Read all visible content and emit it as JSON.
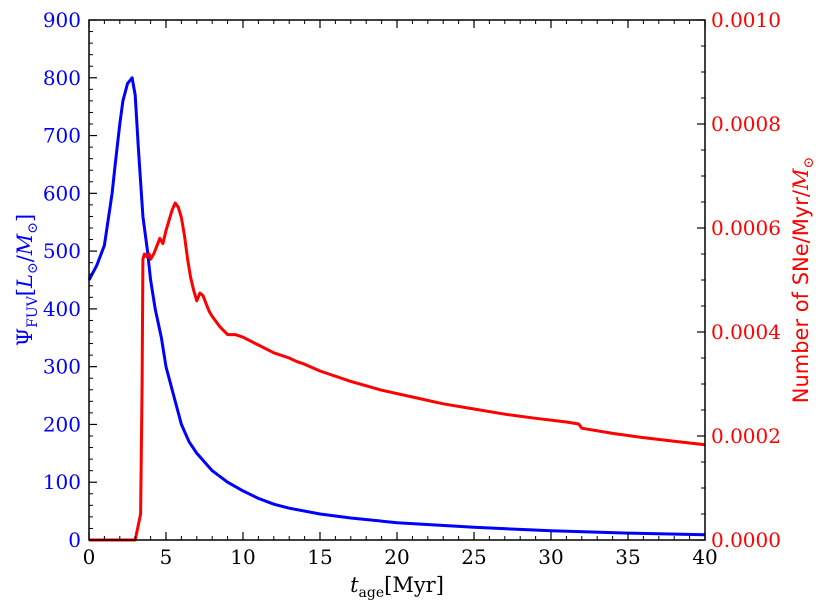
{
  "chart_data": {
    "type": "line",
    "xlabel": "t_age[Myr]",
    "ylabel_left": "Ψ_FUV[L_⊙/M_⊙]",
    "ylabel_right": "Number of SNe/Myr/M_⊙",
    "xlim": [
      0,
      40
    ],
    "ylim_left": [
      0,
      900
    ],
    "ylim_right": [
      0,
      0.001
    ],
    "grid": false,
    "x_ticks": [
      "0",
      "5",
      "10",
      "15",
      "20",
      "25",
      "30",
      "35",
      "40"
    ],
    "y_left_ticks": [
      "0",
      "100",
      "200",
      "300",
      "400",
      "500",
      "600",
      "700",
      "800",
      "900"
    ],
    "y_right_ticks": [
      "0.0000",
      "0.0002",
      "0.0004",
      "0.0006",
      "0.0008",
      "0.0010"
    ],
    "series": [
      {
        "axis": "left",
        "color": "#0000ff",
        "x": [
          0,
          0.5,
          1.0,
          1.5,
          1.7,
          2.0,
          2.2,
          2.5,
          2.8,
          3.0,
          3.2,
          3.5,
          3.8,
          4.0,
          4.3,
          4.7,
          5.0,
          5.5,
          6.0,
          6.5,
          7.0,
          8.0,
          9.0,
          10.0,
          11.0,
          12.0,
          13.0,
          15.0,
          17.0,
          20.0,
          25.0,
          30.0,
          35.0,
          40.0
        ],
        "y": [
          450,
          475,
          510,
          600,
          650,
          720,
          760,
          790,
          800,
          770,
          680,
          560,
          500,
          450,
          400,
          350,
          300,
          250,
          200,
          170,
          150,
          120,
          100,
          85,
          72,
          62,
          55,
          45,
          38,
          30,
          22,
          16,
          12,
          9
        ]
      },
      {
        "axis": "right",
        "color": "#ff0000",
        "x": [
          0,
          3.0,
          3.35,
          3.45,
          3.5,
          3.6,
          3.75,
          3.9,
          4.0,
          4.2,
          4.4,
          4.6,
          4.8,
          5.0,
          5.2,
          5.4,
          5.6,
          5.8,
          6.0,
          6.2,
          6.4,
          6.6,
          6.8,
          7.0,
          7.2,
          7.4,
          7.6,
          7.8,
          8.0,
          8.5,
          9.0,
          9.5,
          10.0,
          11.0,
          12.0,
          13.0,
          13.5,
          14.0,
          15.0,
          17.0,
          19.0,
          21.0,
          23.0,
          25.0,
          27.0,
          29.0,
          31.0,
          31.8,
          32.0,
          34.0,
          36.0,
          38.0,
          40.0
        ],
        "y": [
          0,
          0,
          5e-05,
          0.0003,
          0.00054,
          0.00055,
          0.000545,
          0.00055,
          0.00054,
          0.00055,
          0.000565,
          0.00058,
          0.00057,
          0.000595,
          0.000615,
          0.000635,
          0.000648,
          0.00064,
          0.00062,
          0.000585,
          0.00054,
          0.000505,
          0.00048,
          0.00046,
          0.000475,
          0.00047,
          0.000455,
          0.00044,
          0.00043,
          0.00041,
          0.000395,
          0.000395,
          0.00039,
          0.000375,
          0.00036,
          0.00035,
          0.000343,
          0.000338,
          0.000325,
          0.000305,
          0.000288,
          0.000275,
          0.000262,
          0.000252,
          0.000242,
          0.000234,
          0.000227,
          0.000223,
          0.000215,
          0.000205,
          0.000197,
          0.00019,
          0.000183
        ]
      }
    ]
  }
}
